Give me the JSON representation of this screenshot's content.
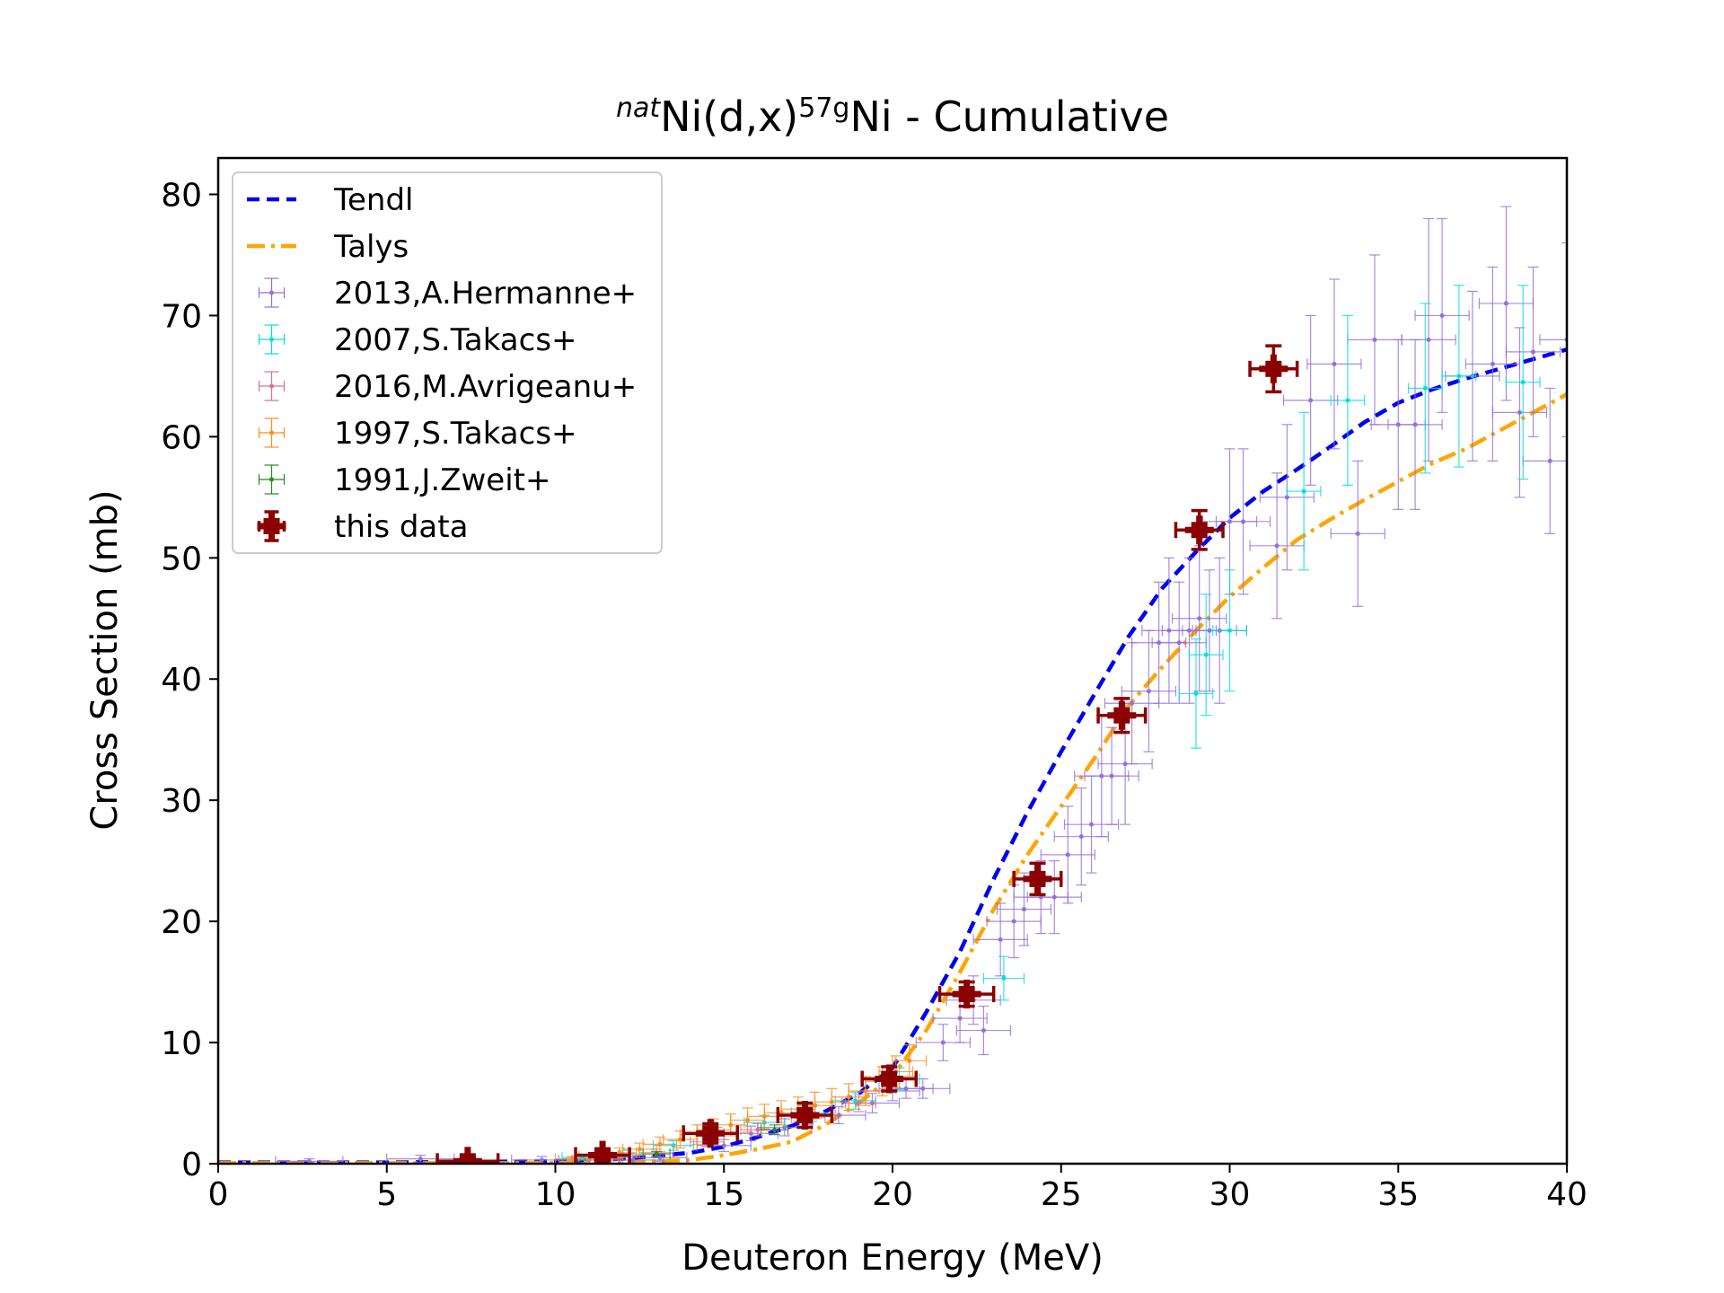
{
  "chart_data": {
    "type": "scatter",
    "title": {
      "sup1": "nat",
      "base1": "Ni(d,x)",
      "sup2": "57g",
      "base2": "Ni - Cumulative"
    },
    "xlabel": "Deuteron Energy (MeV)",
    "ylabel": "Cross Section (mb)",
    "xlim": [
      0,
      40
    ],
    "ylim": [
      0,
      83
    ],
    "xticks": [
      "0",
      "5",
      "10",
      "15",
      "20",
      "25",
      "30",
      "35",
      "40"
    ],
    "yticks": [
      "0",
      "10",
      "20",
      "30",
      "40",
      "50",
      "60",
      "70",
      "80"
    ],
    "grid": false,
    "legend_position": "top-left",
    "lines": [
      {
        "name": "Tendl",
        "color": "#0000ee",
        "style": "dashed",
        "x": [
          0,
          5,
          10,
          12,
          14,
          15,
          16,
          17,
          18,
          19,
          20,
          21,
          22,
          23,
          24,
          25,
          26,
          27,
          28,
          29,
          30,
          31,
          32,
          33,
          34,
          35,
          36,
          37,
          38,
          39,
          40
        ],
        "y": [
          0.1,
          0.1,
          0.2,
          0.4,
          0.9,
          1.4,
          2.2,
          3.1,
          4.3,
          5.8,
          7.9,
          12.5,
          17.5,
          23.5,
          29.0,
          34.0,
          38.8,
          43.5,
          47.5,
          50.5,
          53.3,
          55.5,
          57.3,
          59.2,
          61.2,
          62.8,
          63.9,
          64.8,
          65.6,
          66.4,
          67.2
        ]
      },
      {
        "name": "Talys",
        "color": "#ffa500",
        "style": "dashdot",
        "x": [
          0,
          5,
          10,
          12,
          14,
          15,
          16,
          17,
          18,
          19,
          20,
          21,
          22,
          23,
          24,
          25,
          26,
          27,
          28,
          29,
          30,
          31,
          32,
          33,
          34,
          35,
          36,
          37,
          38,
          39,
          40
        ],
        "y": [
          0.05,
          0.05,
          0.05,
          0.1,
          0.3,
          0.7,
          1.2,
          1.8,
          3.2,
          5.0,
          7.2,
          11.0,
          15.8,
          21.0,
          25.5,
          29.5,
          33.5,
          37.8,
          41.0,
          44.0,
          46.8,
          49.2,
          51.5,
          53.2,
          54.8,
          56.3,
          57.8,
          59.0,
          60.5,
          62.0,
          63.5
        ]
      }
    ],
    "series": [
      {
        "name": "2013,A.Hermanne+",
        "color": "#9370db",
        "x": [
          2.7,
          6.0,
          9.6,
          11.0,
          12.3,
          13.1,
          15.0,
          15.8,
          16.8,
          17.5,
          18.4,
          19.4,
          20.0,
          20.4,
          20.9,
          21.5,
          22.0,
          22.4,
          22.7,
          23.2,
          23.6,
          23.9,
          24.4,
          24.8,
          25.2,
          25.6,
          25.9,
          26.2,
          26.5,
          26.9,
          27.1,
          27.6,
          27.9,
          28.2,
          28.5,
          28.8,
          29.1,
          29.4,
          29.7,
          30.0,
          30.4,
          31.4,
          31.7,
          32.4,
          33.1,
          33.8,
          34.3,
          35.0,
          35.5,
          35.9,
          36.3,
          37.2,
          37.8,
          38.2,
          38.6,
          39.0,
          39.5,
          40.0
        ],
        "y": [
          0.2,
          0.4,
          0.3,
          0.3,
          0.3,
          0.5,
          1.5,
          2.5,
          3.0,
          4.0,
          4.0,
          5.0,
          6.0,
          6.2,
          6.2,
          10.0,
          12.0,
          13.5,
          11.0,
          18.5,
          20.0,
          21.0,
          22.0,
          22.0,
          25.5,
          27.0,
          28.0,
          32.0,
          32.0,
          33.0,
          38.0,
          39.0,
          43.0,
          44.0,
          43.0,
          44.0,
          45.0,
          44.0,
          44.0,
          53.0,
          53.0,
          51.0,
          55.0,
          63.0,
          66.0,
          52.0,
          68.0,
          61.0,
          61.0,
          68.0,
          70.0,
          65.0,
          66.0,
          71.0,
          62.0,
          67.0,
          58.0,
          68.0
        ],
        "xerr": [
          1.0,
          1.0,
          0.9,
          0.9,
          0.9,
          0.8,
          0.8,
          0.8,
          0.8,
          0.8,
          0.8,
          0.8,
          0.8,
          0.8,
          0.8,
          0.8,
          0.8,
          0.8,
          0.8,
          0.8,
          0.8,
          0.8,
          0.8,
          0.8,
          0.8,
          0.8,
          0.8,
          0.8,
          0.8,
          0.8,
          0.8,
          0.8,
          0.8,
          0.8,
          0.8,
          0.8,
          0.8,
          0.8,
          0.8,
          0.8,
          0.8,
          0.8,
          0.8,
          0.8,
          0.8,
          0.8,
          0.8,
          0.8,
          0.8,
          0.8,
          0.8,
          0.8,
          0.8,
          0.8,
          0.8,
          0.8,
          0.8,
          0.8
        ],
        "yerr": [
          0.2,
          0.3,
          0.3,
          0.3,
          0.3,
          0.3,
          0.5,
          0.6,
          0.7,
          0.7,
          0.7,
          0.8,
          0.8,
          0.8,
          0.8,
          1.5,
          2.0,
          2.0,
          2.0,
          3.0,
          3.0,
          3.0,
          3.0,
          3.0,
          4.0,
          4.0,
          4.0,
          5.0,
          4.0,
          5.0,
          5.0,
          5.0,
          5.0,
          6.0,
          5.0,
          6.0,
          6.0,
          5.0,
          6.0,
          6.0,
          6.0,
          6.0,
          6.0,
          7.0,
          7.0,
          6.0,
          7.0,
          7.0,
          7.0,
          10.0,
          8.0,
          7.0,
          8.0,
          8.0,
          7.0,
          7.0,
          6.0,
          8.0
        ]
      },
      {
        "name": "2007,S.Takacs+",
        "color": "#00e0e0",
        "x": [
          10.8,
          12.0,
          13.5,
          14.8,
          16.2,
          17.6,
          18.9,
          20.2,
          23.3,
          29.0,
          29.3,
          30.0,
          32.2,
          33.5,
          35.8,
          36.8,
          38.7
        ],
        "y": [
          0.5,
          0.8,
          1.5,
          2.5,
          3.4,
          4.2,
          5.2,
          7.0,
          15.3,
          38.8,
          42.0,
          44.0,
          55.5,
          63.0,
          64.0,
          65.0,
          64.5
        ],
        "xerr": [
          0.6,
          0.6,
          0.6,
          0.6,
          0.6,
          0.6,
          0.6,
          0.6,
          0.6,
          0.5,
          0.5,
          0.5,
          0.5,
          0.5,
          0.5,
          0.5,
          0.5
        ],
        "yerr": [
          0.2,
          0.3,
          0.4,
          0.5,
          0.6,
          0.7,
          0.7,
          0.9,
          1.8,
          4.5,
          5.0,
          5.0,
          6.5,
          7.0,
          7.0,
          7.5,
          8.0
        ]
      },
      {
        "name": "2016,M.Avrigeanu+",
        "color": "#db7093",
        "x": [
          11.5,
          13.0,
          14.5,
          16.0,
          17.5,
          19.0
        ],
        "y": [
          0.4,
          0.9,
          1.8,
          2.8,
          3.8,
          5.0
        ],
        "xerr": [
          0.5,
          0.5,
          0.5,
          0.5,
          0.5,
          0.5
        ],
        "yerr": [
          0.2,
          0.3,
          0.4,
          0.5,
          0.6,
          0.7
        ]
      },
      {
        "name": "1997,S.Takacs+",
        "color": "#ff8c1a",
        "x": [
          10.5,
          11.2,
          11.9,
          12.5,
          13.1,
          13.7,
          14.2,
          14.7,
          15.2,
          15.7,
          16.2,
          16.7,
          17.2,
          17.7,
          18.2,
          18.7,
          19.2,
          19.7,
          20.1,
          20.5
        ],
        "y": [
          0.4,
          0.6,
          0.9,
          1.2,
          1.6,
          2.0,
          2.4,
          2.8,
          3.2,
          3.6,
          3.9,
          4.2,
          4.5,
          4.8,
          5.1,
          5.5,
          6.0,
          6.8,
          7.6,
          8.5
        ],
        "xerr": [
          0.5,
          0.5,
          0.5,
          0.5,
          0.5,
          0.5,
          0.5,
          0.5,
          0.5,
          0.5,
          0.5,
          0.5,
          0.5,
          0.5,
          0.5,
          0.5,
          0.5,
          0.5,
          0.5,
          0.5
        ],
        "yerr": [
          0.2,
          0.3,
          0.4,
          0.5,
          0.6,
          0.7,
          0.8,
          0.9,
          0.9,
          1.0,
          1.0,
          1.0,
          1.0,
          1.1,
          1.1,
          1.1,
          1.2,
          1.2,
          1.3,
          1.3
        ]
      },
      {
        "name": "1991,J.Zweit+",
        "color": "#228b22",
        "x": [
          13.0,
          16.5
        ],
        "y": [
          0.8,
          2.8
        ],
        "xerr": [
          0.4,
          0.4
        ],
        "yerr": [
          0.2,
          0.4
        ]
      },
      {
        "name": "this data",
        "color": "#8b0000",
        "x": [
          7.4,
          11.4,
          14.6,
          17.4,
          19.9,
          22.2,
          24.3,
          26.8,
          29.1,
          31.3
        ],
        "y": [
          0.2,
          0.7,
          2.5,
          4.0,
          7.0,
          14.0,
          23.5,
          37.0,
          52.3,
          65.6
        ],
        "xerr": [
          0.9,
          0.8,
          0.8,
          0.8,
          0.8,
          0.8,
          0.7,
          0.7,
          0.7,
          0.7
        ],
        "yerr": [
          0.3,
          0.4,
          0.8,
          1.0,
          1.0,
          1.0,
          1.3,
          1.4,
          1.6,
          1.9
        ]
      }
    ]
  }
}
